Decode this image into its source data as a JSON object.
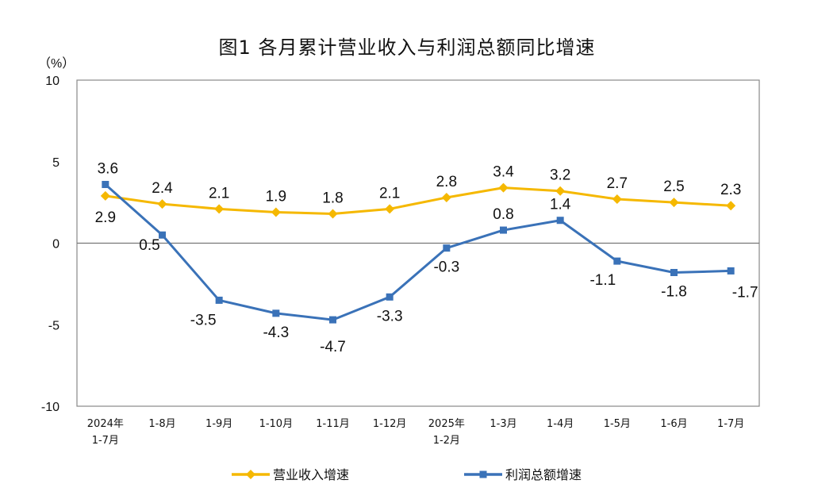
{
  "chart_data": {
    "type": "line",
    "title": "图1  各月累计营业收入与利润总额同比增速",
    "ylabel": "（%）",
    "ylim": [
      -10,
      10
    ],
    "yticks": [
      "10",
      "5",
      "0",
      "-5",
      "-10"
    ],
    "categories": [
      [
        "2024年",
        "1-7月"
      ],
      [
        "1-8月"
      ],
      [
        "1-9月"
      ],
      [
        "1-10月"
      ],
      [
        "1-11月"
      ],
      [
        "1-12月"
      ],
      [
        "2025年",
        "1-2月"
      ],
      [
        "1-3月"
      ],
      [
        "1-4月"
      ],
      [
        "1-5月"
      ],
      [
        "1-6月"
      ],
      [
        "1-7月"
      ]
    ],
    "series": [
      {
        "name": "营业收入增速",
        "color": "#F5B800",
        "marker": "diamond",
        "values": [
          2.9,
          2.4,
          2.1,
          1.9,
          1.8,
          2.1,
          2.8,
          3.4,
          3.2,
          2.7,
          2.5,
          2.3
        ]
      },
      {
        "name": "利润总额增速",
        "color": "#3A72B8",
        "marker": "square",
        "values": [
          3.6,
          0.5,
          -3.5,
          -4.3,
          -4.7,
          -3.3,
          -0.3,
          0.8,
          1.4,
          -1.1,
          -1.8,
          -1.7
        ]
      }
    ],
    "grid": false,
    "legend": "bottom"
  }
}
